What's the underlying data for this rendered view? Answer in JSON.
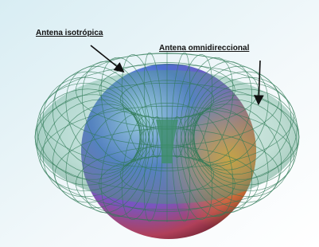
{
  "labels": {
    "isotropic": "Antena isotrópica",
    "omnidirectional": "Antena omnidireccional"
  }
}
